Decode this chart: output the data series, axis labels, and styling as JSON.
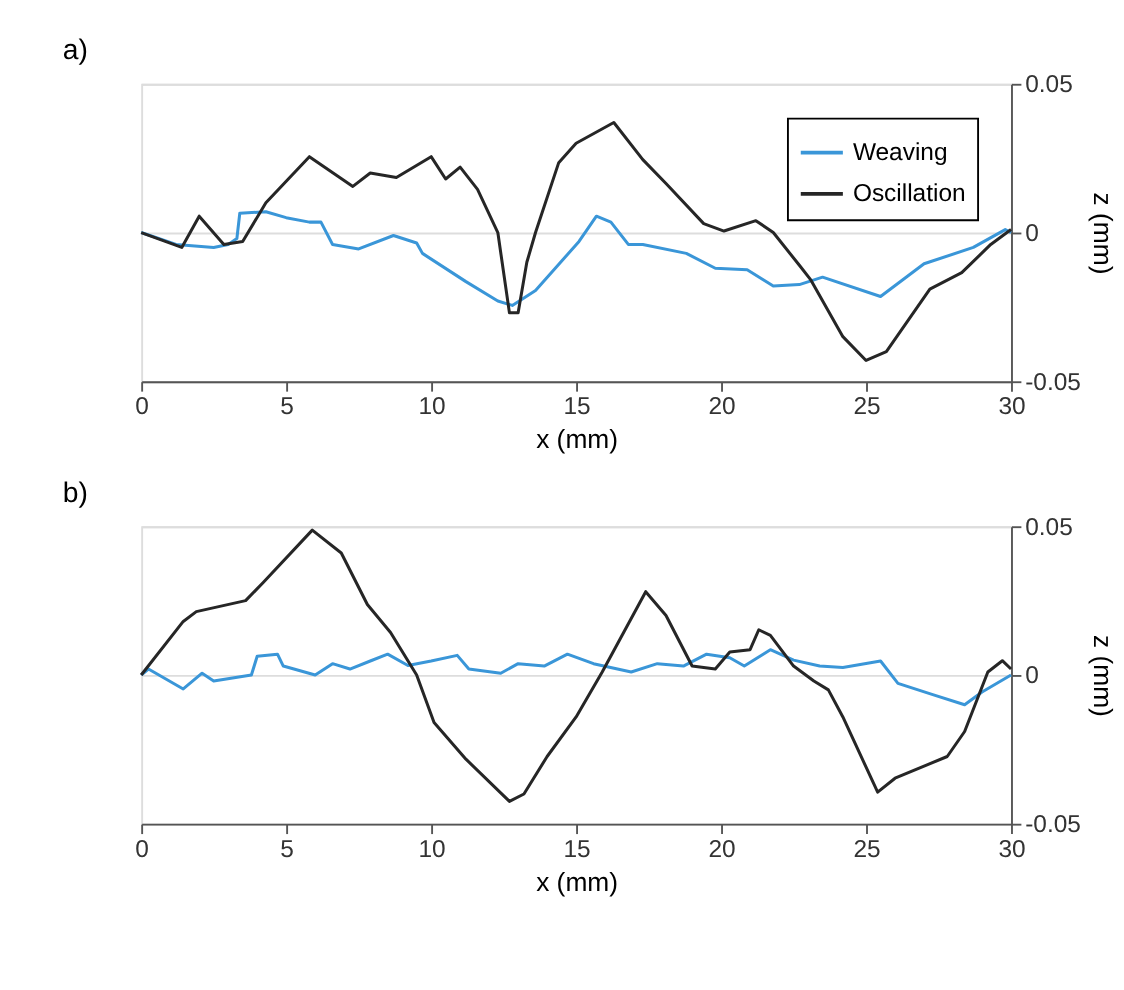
{
  "chart_data": [
    {
      "type": "line",
      "title": "a)",
      "xlabel": "x (mm)",
      "ylabel": "z (mm)",
      "xlim": [
        0,
        30
      ],
      "xticks": [
        0,
        5,
        10,
        15,
        20,
        25,
        30
      ],
      "ylim": [
        -0.05,
        0.05
      ],
      "yticks": [
        -0.05,
        0,
        0.05
      ],
      "grid": "y",
      "legend": "top right",
      "series": [
        {
          "name": "Weaving",
          "color": "#3a96d8",
          "x": [
            0,
            1.2,
            2.5,
            3.0,
            3.3,
            3.4,
            4.3,
            5.0,
            5.8,
            6.2,
            6.6,
            7.5,
            8.7,
            9.5,
            9.7,
            11.2,
            12.3,
            12.8,
            13.6,
            15.1,
            15.7,
            16.2,
            16.8,
            17.3,
            18.8,
            19.8,
            20.9,
            21.8,
            22.7,
            23.5,
            25.5,
            27.0,
            28.7,
            29.8,
            30
          ],
          "values": [
            0,
            -0.004,
            -0.005,
            -0.004,
            -0.002,
            0.0065,
            0.007,
            0.005,
            0.0035,
            0.0035,
            -0.004,
            -0.0055,
            -0.001,
            -0.0035,
            -0.007,
            -0.0165,
            -0.023,
            -0.0245,
            -0.0195,
            -0.003,
            0.0055,
            0.0035,
            -0.004,
            -0.004,
            -0.007,
            -0.012,
            -0.0125,
            -0.018,
            -0.0175,
            -0.015,
            -0.0215,
            -0.0105,
            -0.005,
            0.001,
            0
          ]
        },
        {
          "name": "Oscillation",
          "color": "#262626",
          "x": [
            0,
            1.4,
            2.0,
            2.85,
            3.5,
            4.3,
            5.8,
            7.3,
            7.9,
            8.8,
            10.0,
            10.5,
            11.0,
            11.6,
            12.3,
            12.7,
            13.0,
            13.3,
            13.6,
            14.4,
            15.0,
            16.3,
            17.3,
            18.1,
            19.4,
            20.1,
            21.2,
            21.8,
            22.7,
            23.1,
            24.2,
            25.0,
            25.7,
            27.2,
            28.3,
            29.3,
            30
          ],
          "values": [
            0,
            -0.005,
            0.0055,
            -0.004,
            -0.003,
            0.01,
            0.0255,
            0.0155,
            0.02,
            0.0185,
            0.0255,
            0.018,
            0.022,
            0.0145,
            0,
            -0.027,
            -0.027,
            -0.01,
            0,
            0.0235,
            0.03,
            0.037,
            0.0245,
            0.0165,
            0.003,
            0.0005,
            0.004,
            0,
            -0.011,
            -0.016,
            -0.035,
            -0.043,
            -0.04,
            -0.019,
            -0.0135,
            -0.004,
            0.001
          ]
        }
      ]
    },
    {
      "type": "line",
      "title": "b)",
      "xlabel": "x (mm)",
      "ylabel": "z (mm)",
      "xlim": [
        0,
        30
      ],
      "xticks": [
        0,
        5,
        10,
        15,
        20,
        25,
        30
      ],
      "ylim": [
        -0.05,
        0.05
      ],
      "yticks": [
        -0.05,
        0,
        0.05
      ],
      "grid": "y",
      "legend": "top right",
      "series": [
        {
          "name": "Weaving",
          "color": "#3a96d8",
          "x": [
            0,
            0.25,
            1.45,
            2.1,
            2.5,
            3.8,
            4.0,
            4.7,
            4.9,
            6.0,
            6.6,
            7.2,
            7.9,
            8.5,
            9.2,
            10.0,
            10.9,
            11.3,
            12.4,
            13.0,
            13.9,
            14.7,
            15.6,
            16.9,
            17.8,
            18.7,
            19.5,
            20.3,
            20.8,
            21.7,
            22.5,
            23.4,
            24.2,
            25.5,
            26.1,
            27.3,
            28.4,
            29.0,
            30
          ],
          "values": [
            0,
            0.002,
            -0.0047,
            0.0006,
            -0.002,
            0,
            0.0063,
            0.007,
            0.003,
            0,
            0.0038,
            0.002,
            0.0047,
            0.007,
            0.0032,
            0.0047,
            0.0066,
            0.002,
            0.0006,
            0.0038,
            0.003,
            0.007,
            0.0038,
            0.001,
            0.0038,
            0.003,
            0.007,
            0.0058,
            0.003,
            0.0085,
            0.005,
            0.003,
            0.0025,
            0.0047,
            -0.0028,
            -0.0066,
            -0.01,
            -0.0057,
            0
          ]
        },
        {
          "name": "Oscillation",
          "color": "#262626",
          "x": [
            0,
            1.45,
            1.9,
            3.6,
            4.2,
            5.9,
            6.9,
            7.8,
            8.6,
            9.5,
            10.1,
            11.2,
            12.7,
            13.2,
            14.0,
            15.0,
            15.9,
            17.4,
            18.1,
            19.0,
            19.8,
            20.3,
            21.0,
            21.3,
            21.7,
            22.5,
            23.2,
            23.7,
            24.2,
            25.4,
            26.0,
            27.8,
            28.4,
            29.2,
            29.7,
            30
          ],
          "values": [
            0,
            0.018,
            0.0213,
            0.025,
            0.031,
            0.0487,
            0.041,
            0.0237,
            0.0143,
            0,
            -0.016,
            -0.0283,
            -0.0425,
            -0.04,
            -0.0274,
            -0.0141,
            0.001,
            0.028,
            0.02,
            0.003,
            0.002,
            0.0077,
            0.0085,
            0.0152,
            0.0133,
            0.003,
            -0.002,
            -0.005,
            -0.0141,
            -0.0394,
            -0.0347,
            -0.0274,
            -0.019,
            0.001,
            0.0048,
            0.002
          ]
        }
      ]
    }
  ]
}
